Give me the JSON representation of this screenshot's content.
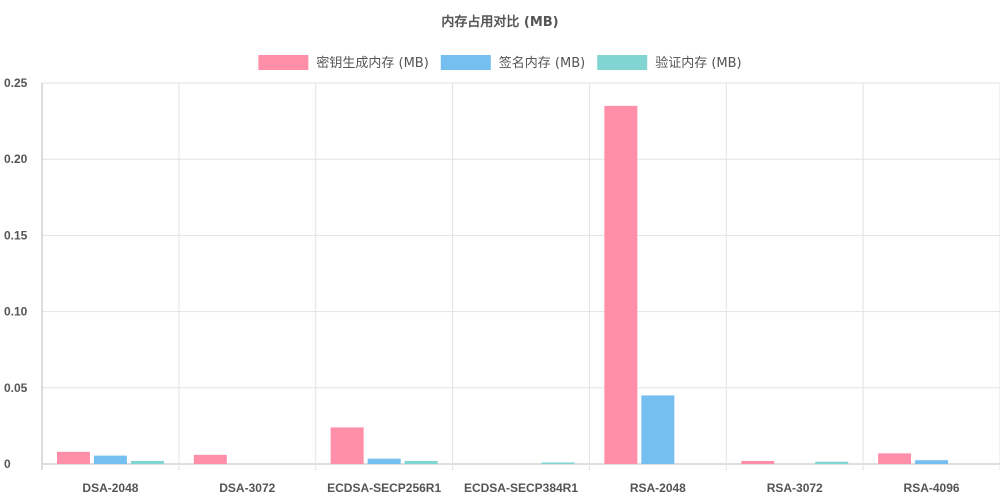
{
  "chart_data": {
    "type": "bar",
    "title": "内存占用对比 (MB)",
    "xlabel": "",
    "ylabel": "",
    "ylim": [
      0,
      0.25
    ],
    "yticks": [
      "0",
      "0.05",
      "0.10",
      "0.15",
      "0.20",
      "0.25"
    ],
    "grid": true,
    "legend_position": "top-center",
    "categories": [
      "DSA-2048",
      "DSA-3072",
      "ECDSA-SECP256R1",
      "ECDSA-SECP384R1",
      "RSA-2048",
      "RSA-3072",
      "RSA-4096"
    ],
    "series": [
      {
        "name": "密钥生成内存 (MB)",
        "color": "#ff8fa8",
        "values": [
          0.008,
          0.006,
          0.024,
          0,
          0.235,
          0.002,
          0.007
        ]
      },
      {
        "name": "签名内存 (MB)",
        "color": "#74bff0",
        "values": [
          0.0055,
          0,
          0.0035,
          0,
          0.045,
          0,
          0.0025
        ]
      },
      {
        "name": "验证内存 (MB)",
        "color": "#80d4d2",
        "values": [
          0.002,
          0,
          0.002,
          0.001,
          0,
          0.0015,
          0
        ]
      }
    ]
  }
}
